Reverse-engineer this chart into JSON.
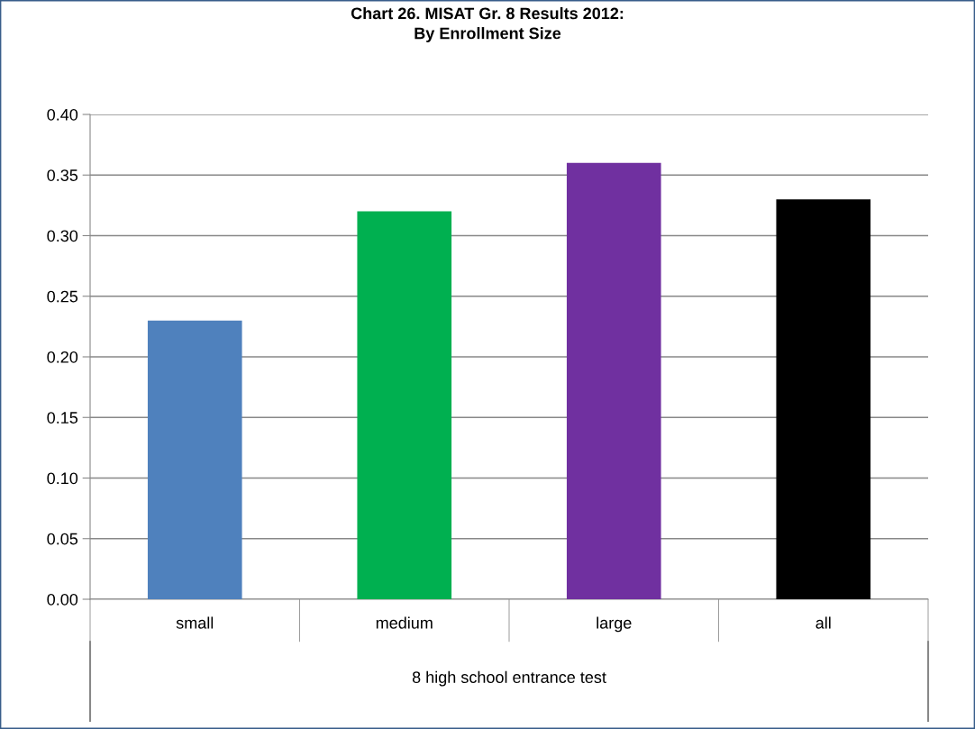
{
  "chart_data": {
    "type": "bar",
    "title": "Chart 26. MISAT Gr. 8 Results 2012:\nBy Enrollment Size",
    "categories": [
      "small",
      "medium",
      "large",
      "all"
    ],
    "xlabel": "8 high school entrance test",
    "values": [
      0.23,
      0.32,
      0.36,
      0.33
    ],
    "colors": [
      "#4f81bd",
      "#00b050",
      "#7030a0",
      "#000000"
    ],
    "ylim": [
      0,
      0.4
    ],
    "yticks": [
      {
        "value": 0,
        "label": "0.00"
      },
      {
        "value": 0.05,
        "label": "0.05"
      },
      {
        "value": 0.1,
        "label": "0.10"
      },
      {
        "value": 0.15,
        "label": "0.15"
      },
      {
        "value": 0.2,
        "label": "0.20"
      },
      {
        "value": 0.25,
        "label": "0.25"
      },
      {
        "value": 0.3,
        "label": "0.30"
      },
      {
        "value": 0.35,
        "label": "0.35"
      },
      {
        "value": 0.4,
        "label": "0.40"
      }
    ],
    "grid": "y",
    "legend": false
  }
}
